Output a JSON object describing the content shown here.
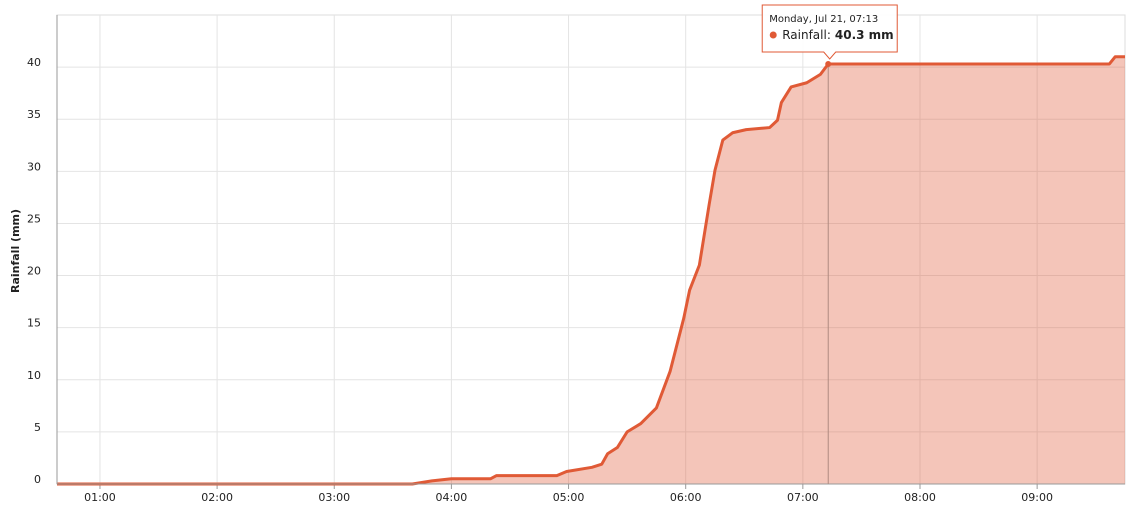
{
  "chart_data": {
    "type": "area",
    "y_label": "Rainfall (mm)",
    "x": [
      "00:38",
      "03:40",
      "03:50",
      "04:00",
      "04:20",
      "04:23",
      "04:54",
      "04:59",
      "05:12",
      "05:17",
      "05:20",
      "05:25",
      "05:30",
      "05:37",
      "05:45",
      "05:52",
      "05:59",
      "06:02",
      "06:07",
      "06:12",
      "06:15",
      "06:19",
      "06:24",
      "06:31",
      "06:43",
      "06:47",
      "06:49",
      "06:54",
      "07:02",
      "07:09",
      "07:13",
      "09:37",
      "09:40",
      "09:45"
    ],
    "series": [
      {
        "name": "Rainfall",
        "color": "#e05a36",
        "values": [
          0,
          0,
          0.3,
          0.5,
          0.5,
          0.8,
          0.8,
          1.2,
          1.6,
          1.9,
          2.9,
          3.5,
          5.0,
          5.8,
          7.3,
          10.8,
          15.9,
          18.6,
          21,
          26.8,
          30.1,
          33.0,
          33.7,
          34.0,
          34.2,
          34.9,
          36.6,
          38.1,
          38.5,
          39.3,
          40.3,
          40.3,
          41,
          41
        ]
      }
    ],
    "xlim": [
      "00:38",
      "09:45"
    ],
    "xticks": [
      "01:00",
      "02:00",
      "03:00",
      "04:00",
      "05:00",
      "06:00",
      "07:00",
      "08:00",
      "09:00"
    ],
    "ylim": [
      0,
      45
    ],
    "yticks": [
      0,
      5,
      10,
      15,
      20,
      25,
      30,
      35,
      40
    ],
    "grid": true,
    "tooltip": {
      "x": "07:13",
      "header": "Monday, Jul 21, 07:13",
      "label": "Rainfall:",
      "value": 40.3,
      "value_label": "40.3 mm"
    }
  }
}
